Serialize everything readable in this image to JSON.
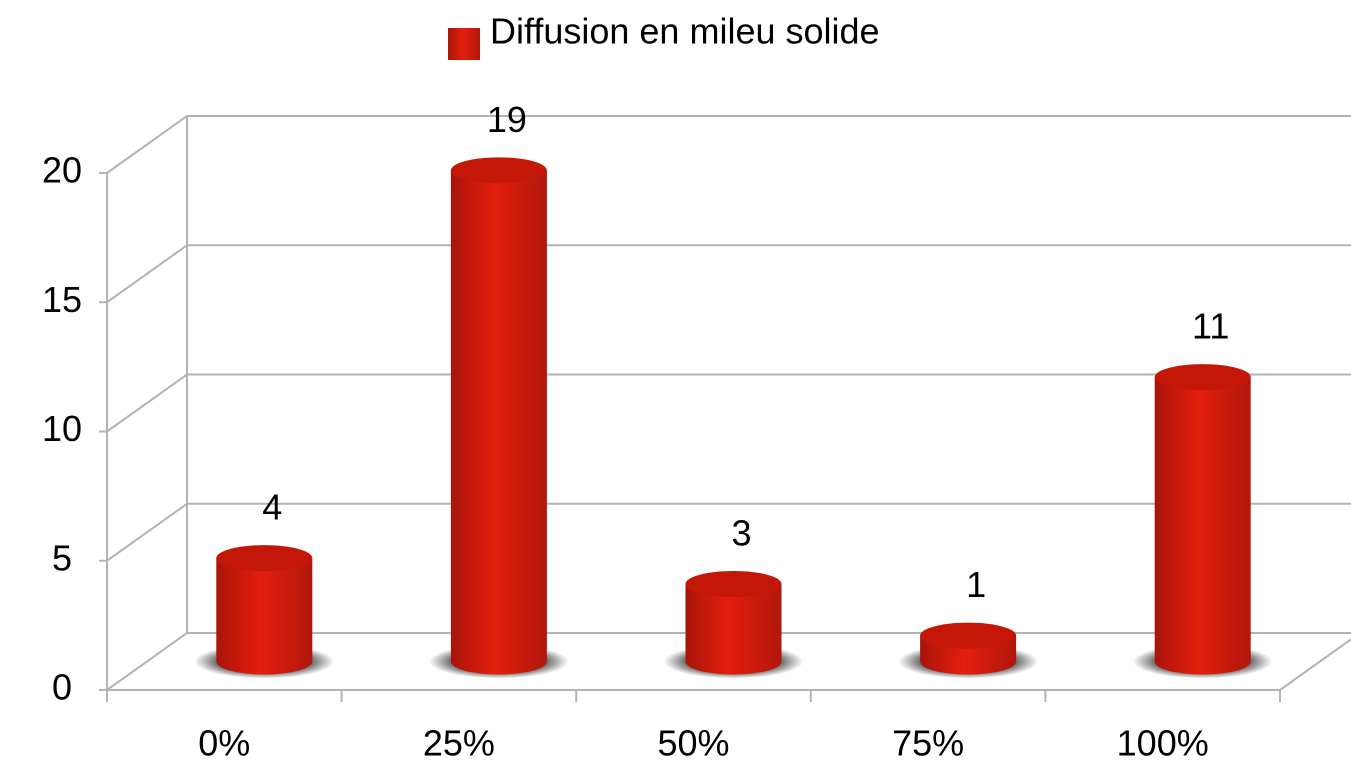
{
  "chart_data": {
    "type": "bar",
    "categories": [
      "0%",
      "25%",
      "50%",
      "75%",
      "100%"
    ],
    "series": [
      {
        "name": "Diffusion en mileu solide",
        "color": "#d11a0a",
        "values": [
          4,
          19,
          3,
          1,
          11
        ]
      }
    ],
    "ylim": [
      0,
      20
    ],
    "yticks": [
      0,
      5,
      10,
      15,
      20
    ],
    "grid": true,
    "legend": "top"
  }
}
